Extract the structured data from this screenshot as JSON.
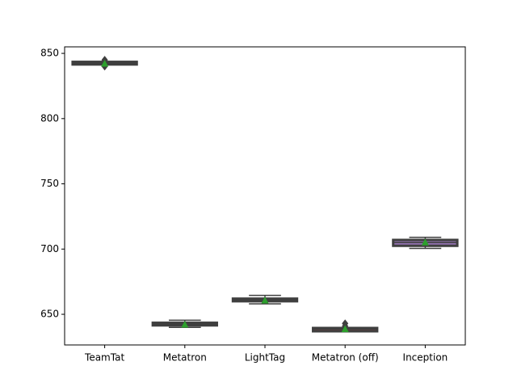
{
  "chart_data": {
    "type": "boxplot",
    "categories": [
      "TeamTat",
      "Metatron",
      "LightTag",
      "Metatron (off)",
      "Inception"
    ],
    "colors": [
      "#3274a1",
      "#e1812c",
      "#3a923a",
      "#c03d3e",
      "#9372b2"
    ],
    "whislo": [
      842,
      640,
      658,
      637,
      700.5
    ],
    "q1": [
      841.5,
      641.5,
      660,
      637,
      702.5
    ],
    "median": [
      842.5,
      642.5,
      661,
      638.5,
      705
    ],
    "q3": [
      843.5,
      643.5,
      662,
      639.5,
      707
    ],
    "whishi": [
      843,
      645.5,
      664.5,
      640,
      709
    ],
    "means": [
      842,
      642,
      660.5,
      638.5,
      705
    ],
    "fliers": [
      [
        845,
        840
      ],
      [],
      [],
      [
        643,
        641
      ],
      []
    ],
    "mean_color": "#2ca02c",
    "ylim": [
      626.5,
      855
    ],
    "yticks": [
      650,
      700,
      750,
      800,
      850
    ]
  }
}
